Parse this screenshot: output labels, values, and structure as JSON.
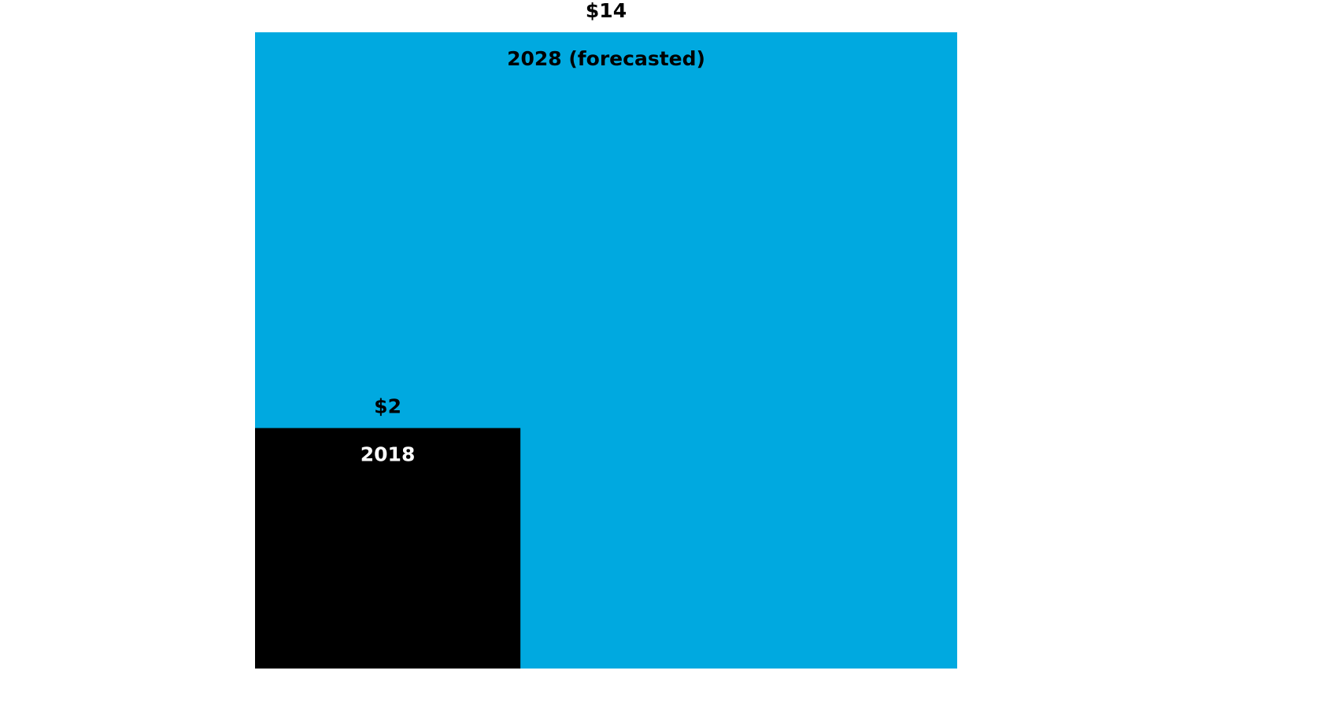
{
  "chart_data": {
    "type": "proportional-area",
    "categories": [
      "2028 (forecasted)",
      "2018"
    ],
    "values": [
      14,
      2
    ],
    "value_labels": [
      "$14",
      "$2"
    ],
    "colors": [
      "#00a9e0",
      "#000000"
    ]
  }
}
